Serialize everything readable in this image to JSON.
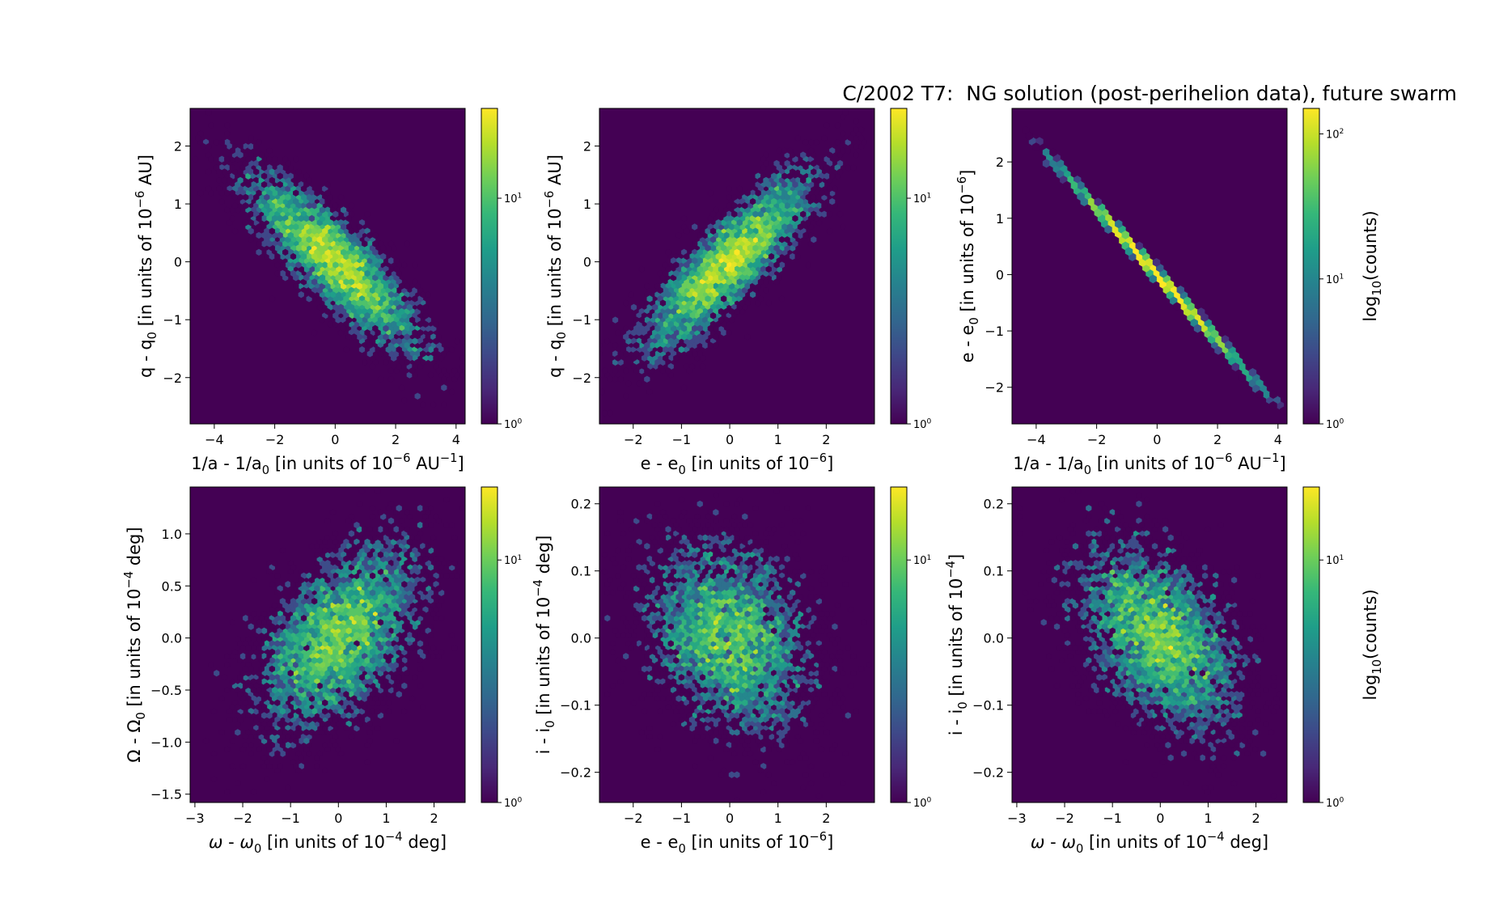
{
  "figure": {
    "title": "C/2002 T7:  NG solution (post-perihelion data), future swarm"
  },
  "colormap": [
    "#440154",
    "#482878",
    "#3e4989",
    "#31688e",
    "#26828e",
    "#1f9e89",
    "#35b779",
    "#6ece58",
    "#b5de2b",
    "#fde725"
  ],
  "chart_data": [
    {
      "type": "heatmap",
      "subtype": "hexbin",
      "xlabel": "1/a - 1/a<sub>0</sub> [in units of 10<sup>−6</sup> AU<sup>−1</sup>]",
      "ylabel": "q - q<sub>0</sub> [in units of 10<sup>−6</sup> AU]",
      "xlim": [
        -4.8,
        4.3
      ],
      "ylim": [
        -2.8,
        2.65
      ],
      "xticks": [
        -4,
        -2,
        0,
        2,
        4
      ],
      "xtick_labels": [
        "−4",
        "−2",
        "0",
        "2",
        "4"
      ],
      "yticks": [
        -2,
        -1,
        0,
        1,
        2
      ],
      "ytick_labels": [
        "−2",
        "−1",
        "0",
        "1",
        "2"
      ],
      "distribution": {
        "mean_x": 0,
        "mean_y": 0,
        "sigma_x": 1.4,
        "sigma_y": 0.75,
        "correlation": -0.85
      },
      "colorbar": {
        "label": "",
        "scale": "log",
        "range": [
          1,
          25
        ],
        "ticks": [
          1,
          10
        ],
        "tick_labels": [
          "10<sup>0</sup>",
          "10<sup>1</sup>"
        ]
      }
    },
    {
      "type": "heatmap",
      "subtype": "hexbin",
      "xlabel": "e - e<sub>0</sub> [in units of 10<sup>−6</sup>]",
      "ylabel": "q - q<sub>0</sub> [in units of 10<sup>−6</sup> AU]",
      "xlim": [
        -2.7,
        3.0
      ],
      "ylim": [
        -2.8,
        2.65
      ],
      "xticks": [
        -2,
        -1,
        0,
        1,
        2
      ],
      "xtick_labels": [
        "−2",
        "−1",
        "0",
        "1",
        "2"
      ],
      "yticks": [
        -2,
        -1,
        0,
        1,
        2
      ],
      "ytick_labels": [
        "−2",
        "−1",
        "0",
        "1",
        "2"
      ],
      "distribution": {
        "mean_x": 0,
        "mean_y": 0,
        "sigma_x": 0.85,
        "sigma_y": 0.75,
        "correlation": 0.85
      },
      "colorbar": {
        "label": "",
        "scale": "log",
        "range": [
          1,
          25
        ],
        "ticks": [
          1,
          10
        ],
        "tick_labels": [
          "10<sup>0</sup>",
          "10<sup>1</sup>"
        ]
      }
    },
    {
      "type": "heatmap",
      "subtype": "hexbin",
      "xlabel": "1/a - 1/a<sub>0</sub> [in units of 10<sup>−6</sup> AU<sup>−1</sup>]",
      "ylabel": "e - e<sub>0</sub> [in units of 10<sup>−6</sup>]",
      "xlim": [
        -4.8,
        4.3
      ],
      "ylim": [
        -2.65,
        2.95
      ],
      "xticks": [
        -4,
        -2,
        0,
        2,
        4
      ],
      "xtick_labels": [
        "−4",
        "−2",
        "0",
        "2",
        "4"
      ],
      "yticks": [
        -2,
        -1,
        0,
        1,
        2
      ],
      "ytick_labels": [
        "−2",
        "−1",
        "0",
        "1",
        "2"
      ],
      "distribution": {
        "mean_x": 0,
        "mean_y": 0,
        "sigma_x": 1.4,
        "sigma_y": 0.82,
        "correlation": -0.999
      },
      "colorbar": {
        "label": "log<sub>10</sub>(counts)",
        "scale": "log",
        "range": [
          1,
          150
        ],
        "ticks": [
          1,
          10,
          100
        ],
        "tick_labels": [
          "10<sup>0</sup>",
          "10<sup>1</sup>",
          "10<sup>2</sup>"
        ]
      }
    },
    {
      "type": "heatmap",
      "subtype": "hexbin",
      "xlabel": "<i>ω</i> - <i>ω</i><sub>0</sub> [in units of 10<sup>−4</sup> deg]",
      "ylabel": "Ω - Ω<sub>0</sub> [in units of 10<sup>−4</sup> deg]",
      "xlim": [
        -3.1,
        2.65
      ],
      "ylim": [
        -1.58,
        1.45
      ],
      "xticks": [
        -3,
        -2,
        -1,
        0,
        1,
        2
      ],
      "xtick_labels": [
        "−3",
        "−2",
        "−1",
        "0",
        "1",
        "2"
      ],
      "yticks": [
        -1.5,
        -1.0,
        -0.5,
        0.0,
        0.5,
        1.0
      ],
      "ytick_labels": [
        "−1.5",
        "−1.0",
        "−0.5",
        "0.0",
        "0.5",
        "1.0"
      ],
      "distribution": {
        "mean_x": 0,
        "mean_y": 0,
        "sigma_x": 0.85,
        "sigma_y": 0.45,
        "correlation": 0.5
      },
      "colorbar": {
        "label": "",
        "scale": "log",
        "range": [
          1,
          20
        ],
        "ticks": [
          1,
          10
        ],
        "tick_labels": [
          "10<sup>0</sup>",
          "10<sup>1</sup>"
        ]
      }
    },
    {
      "type": "heatmap",
      "subtype": "hexbin",
      "xlabel": "e - e<sub>0</sub> [in units of 10<sup>−6</sup>]",
      "ylabel": "i - i<sub>0</sub> [in units of 10<sup>−4</sup> deg]",
      "xlim": [
        -2.7,
        3.0
      ],
      "ylim": [
        -0.245,
        0.225
      ],
      "xticks": [
        -2,
        -1,
        0,
        1,
        2
      ],
      "xtick_labels": [
        "−2",
        "−1",
        "0",
        "1",
        "2"
      ],
      "yticks": [
        -0.2,
        -0.1,
        0.0,
        0.1,
        0.2
      ],
      "ytick_labels": [
        "−0.2",
        "−0.1",
        "0.0",
        "0.1",
        "0.2"
      ],
      "distribution": {
        "mean_x": 0,
        "mean_y": 0,
        "sigma_x": 0.85,
        "sigma_y": 0.07,
        "correlation": -0.25
      },
      "colorbar": {
        "label": "",
        "scale": "log",
        "range": [
          1,
          20
        ],
        "ticks": [
          1,
          10
        ],
        "tick_labels": [
          "10<sup>0</sup>",
          "10<sup>1</sup>"
        ]
      }
    },
    {
      "type": "heatmap",
      "subtype": "hexbin",
      "xlabel": "<i>ω</i> - <i>ω</i><sub>0</sub> [in units of 10<sup>−4</sup> deg]",
      "ylabel": "i - i<sub>0</sub> [in units of 10<sup>−4</sup>]",
      "xlim": [
        -3.1,
        2.65
      ],
      "ylim": [
        -0.245,
        0.225
      ],
      "xticks": [
        -3,
        -2,
        -1,
        0,
        1,
        2
      ],
      "xtick_labels": [
        "−3",
        "−2",
        "−1",
        "0",
        "1",
        "2"
      ],
      "yticks": [
        -0.2,
        -0.1,
        0.0,
        0.1,
        0.2
      ],
      "ytick_labels": [
        "−0.2",
        "−0.1",
        "0.0",
        "0.1",
        "0.2"
      ],
      "distribution": {
        "mean_x": 0,
        "mean_y": 0,
        "sigma_x": 0.85,
        "sigma_y": 0.07,
        "correlation": -0.45
      },
      "colorbar": {
        "label": "log<sub>10</sub>(counts)",
        "scale": "log",
        "range": [
          1,
          20
        ],
        "ticks": [
          1,
          10
        ],
        "tick_labels": [
          "10<sup>0</sup>",
          "10<sup>1</sup>"
        ]
      }
    }
  ]
}
